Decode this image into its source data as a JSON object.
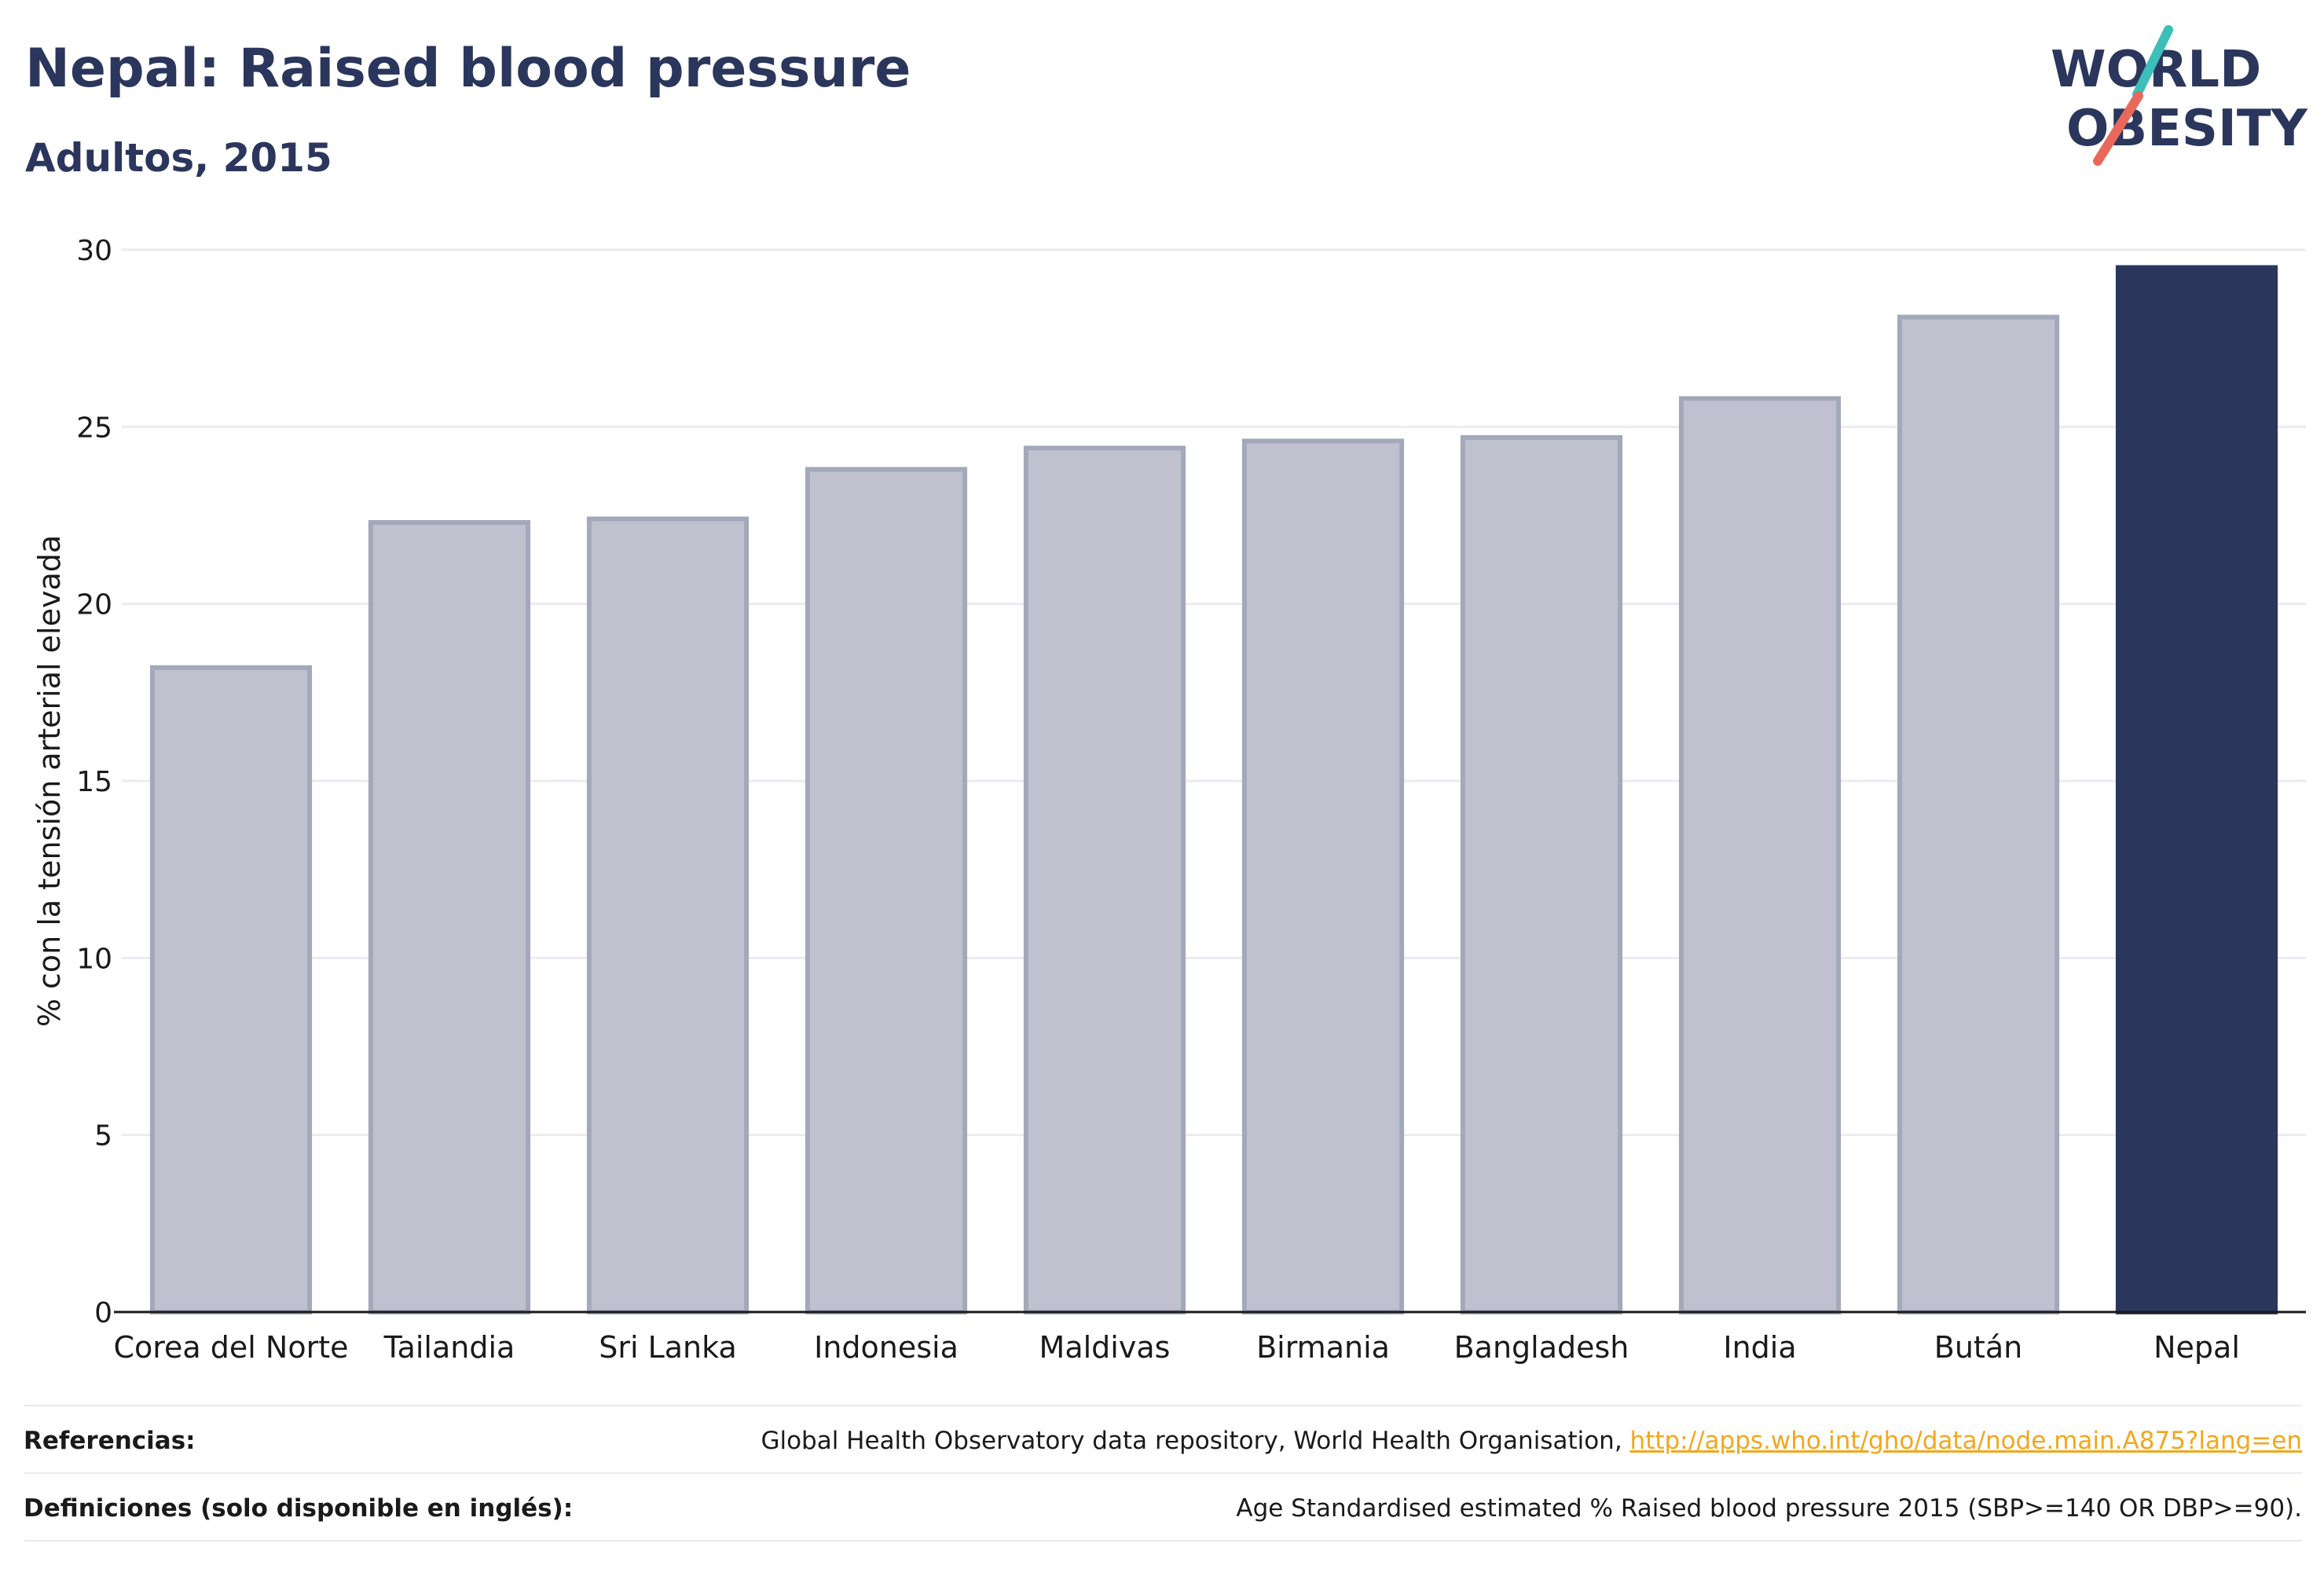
{
  "header": {
    "title": "Nepal: Raised blood pressure",
    "subtitle": "Adultos, 2015"
  },
  "logo": {
    "line1": "WORLD",
    "line2": "OBESITY",
    "accent_colors": [
      "#3bbfb8",
      "#e8695b"
    ]
  },
  "chart_data": {
    "type": "bar",
    "title": "Nepal: Raised blood pressure",
    "subtitle": "Adultos, 2015",
    "xlabel": "",
    "ylabel": "% con la tensión arterial elevada",
    "ylim": [
      0,
      30
    ],
    "yticks": [
      0,
      5,
      10,
      15,
      20,
      25,
      30
    ],
    "grid": true,
    "legend": "none",
    "categories": [
      "Corea del Norte",
      "Tailandia",
      "Sri Lanka",
      "Indonesia",
      "Maldivas",
      "Birmania",
      "Bangladesh",
      "India",
      "Bután",
      "Nepal"
    ],
    "values": [
      18.2,
      22.3,
      22.4,
      23.8,
      24.4,
      24.6,
      24.7,
      25.8,
      28.1,
      29.5
    ],
    "highlight": "Nepal",
    "colors": {
      "bar": "#bfc2ce",
      "bar_border": "#a3a8ba",
      "highlight": "#2b365d",
      "grid": "#ebecf1",
      "axis": "#1a1a1a"
    }
  },
  "footer": {
    "references_label": "Referencias:",
    "references_text": "Global Health Observatory data repository, World Health Organisation, ",
    "references_link": "http://apps.who.int/gho/data/node.main.A875?lang=en",
    "definitions_label": "Definiciones (solo disponible en inglés):",
    "definitions_text": "Age Standardised estimated % Raised blood pressure 2015 (SBP>=140 OR DBP>=90)."
  }
}
